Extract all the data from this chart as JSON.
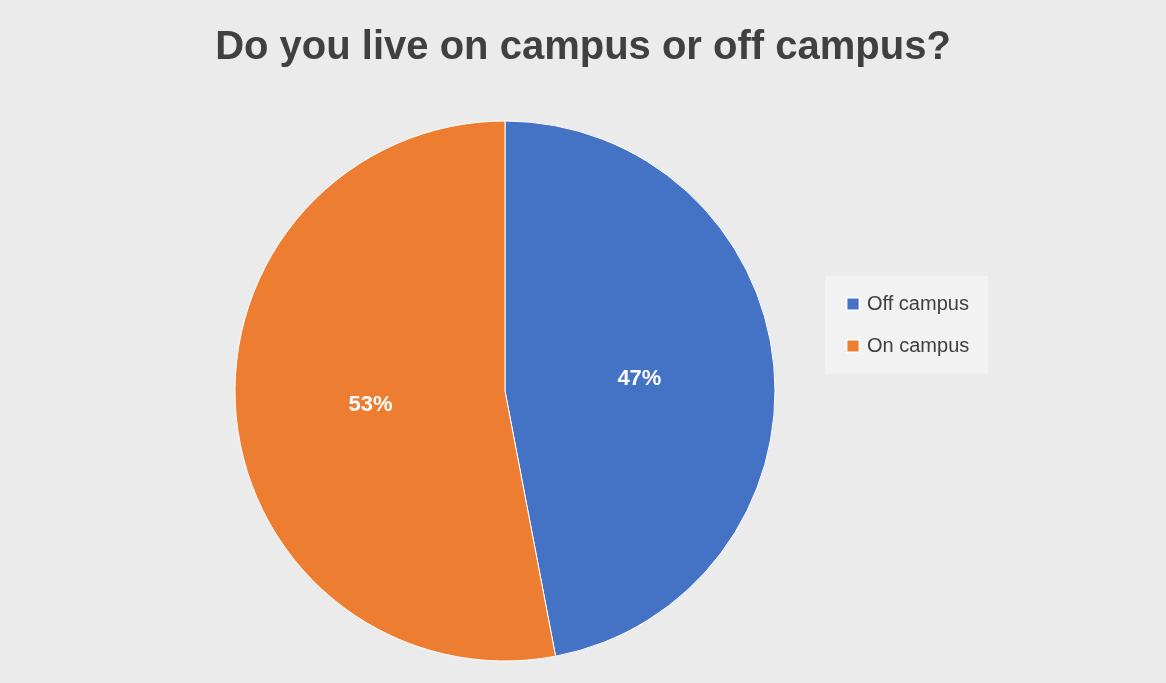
{
  "chart_data": {
    "type": "pie",
    "title": "Do you live on campus or off campus?",
    "categories": [
      "Off campus",
      "On campus"
    ],
    "values": [
      47,
      53
    ],
    "colors": [
      "#4472c4",
      "#ed7d31"
    ],
    "value_labels": [
      "47%",
      "53%"
    ],
    "legend": "right"
  }
}
